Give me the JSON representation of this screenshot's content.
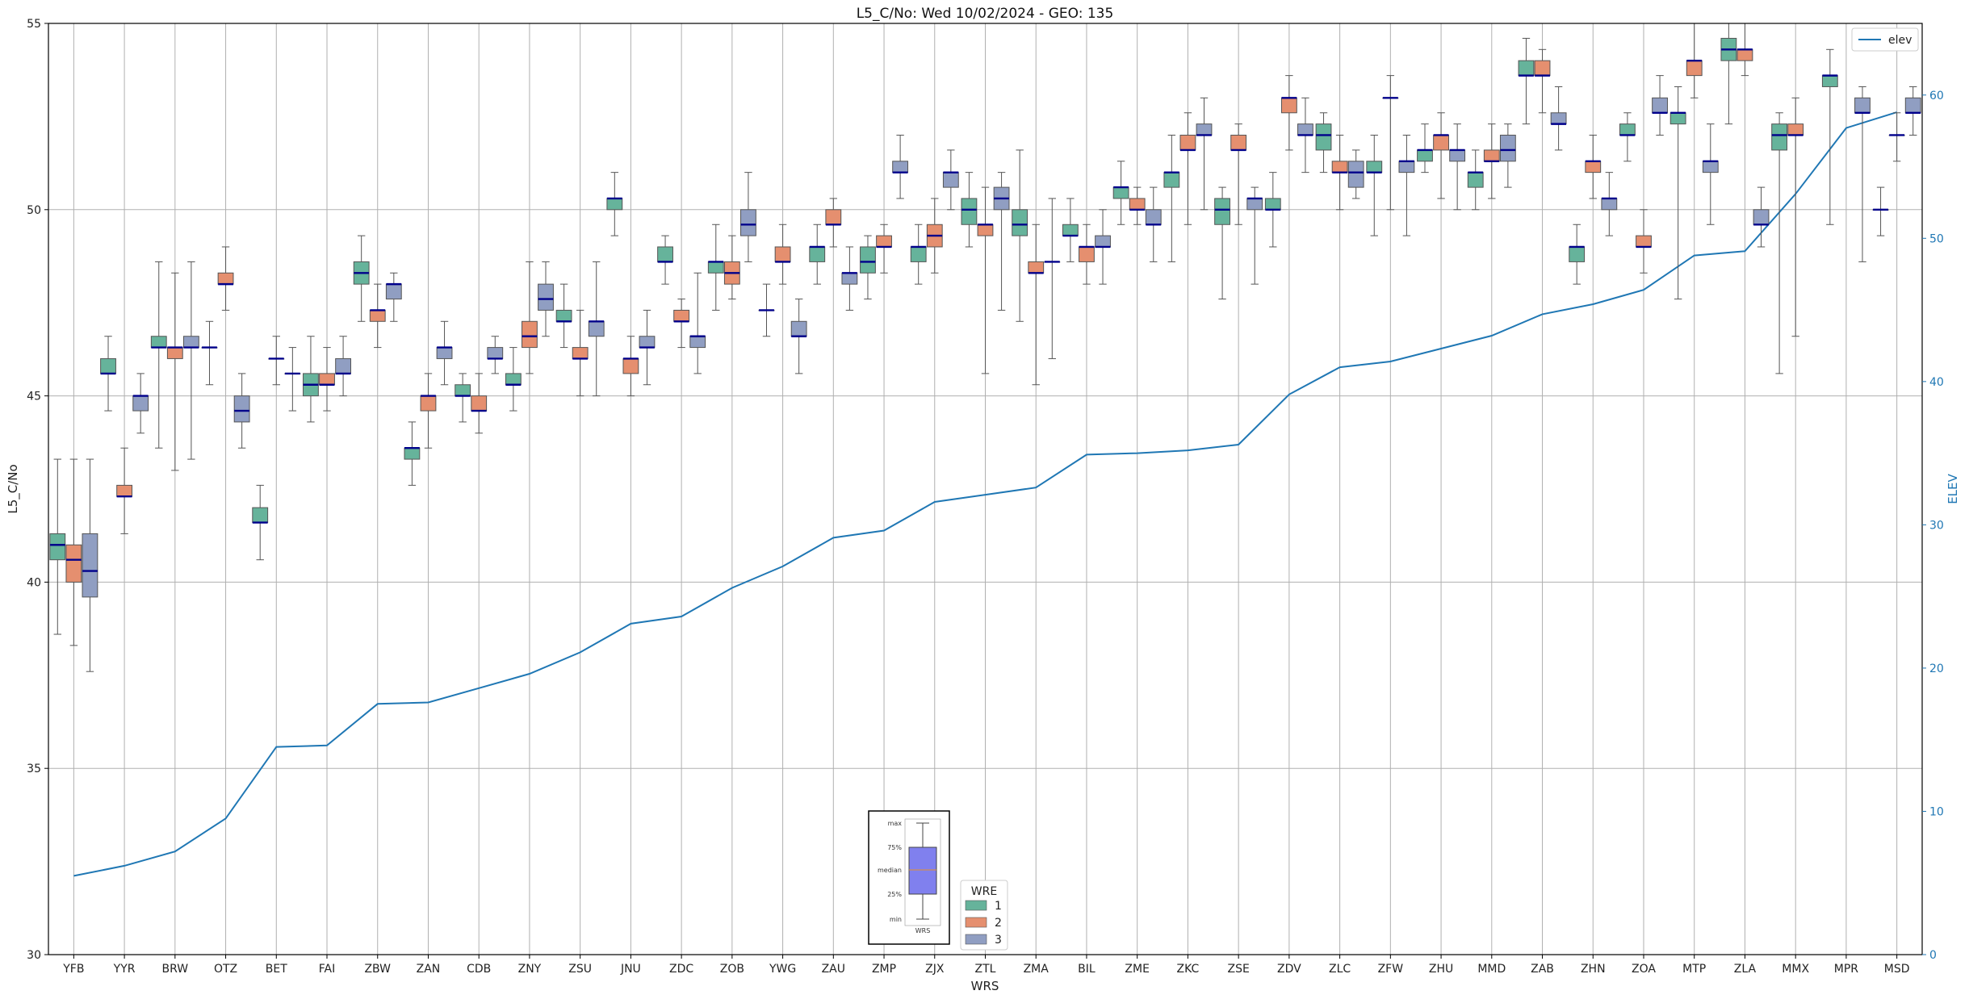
{
  "chart_data": {
    "type": "box",
    "title": "L5_C/No: Wed 10/02/2024 - GEO: 135",
    "xlabel": "WRS",
    "ylabel": "L5_C/No",
    "y2label": "ELEV",
    "ylim": [
      30,
      55
    ],
    "y2lim": [
      0,
      65
    ],
    "yticks": [
      30,
      35,
      40,
      45,
      50,
      55
    ],
    "y2ticks": [
      0,
      10,
      20,
      30,
      40,
      50,
      60
    ],
    "grid": true,
    "categories": [
      "YFB",
      "YYR",
      "BRW",
      "OTZ",
      "BET",
      "FAI",
      "ZBW",
      "ZAN",
      "CDB",
      "ZNY",
      "ZSU",
      "JNU",
      "ZDC",
      "ZOB",
      "YWG",
      "ZAU",
      "ZMP",
      "ZJX",
      "ZTL",
      "ZMA",
      "BIL",
      "ZME",
      "ZKC",
      "ZSE",
      "ZDV",
      "ZLC",
      "ZFW",
      "ZHU",
      "MMD",
      "ZAB",
      "ZHN",
      "ZOA",
      "MTP",
      "ZLA",
      "MMX",
      "MPR",
      "MSD"
    ],
    "hue_legend": {
      "title": "WRE",
      "entries": [
        "1",
        "2",
        "3"
      ]
    },
    "hue_colors": {
      "1": "#66b39b",
      "2": "#e58f6f",
      "3": "#909ec2"
    },
    "median_color": "#00008b",
    "elev_color": "#1f77b4",
    "elev_legend": "elev",
    "elev": [
      5.5,
      6.2,
      7.2,
      9.5,
      14.5,
      14.6,
      17.5,
      17.6,
      18.6,
      19.6,
      21.1,
      23.1,
      23.6,
      25.6,
      27.1,
      29.1,
      29.6,
      31.6,
      32.1,
      32.6,
      34.9,
      35.0,
      35.2,
      35.6,
      39.1,
      41.0,
      41.4,
      42.3,
      43.2,
      44.7,
      45.4,
      46.4,
      48.8,
      49.1,
      53.1,
      57.7,
      58.8
    ],
    "boxes": [
      {
        "wrs": "YFB",
        "wre": "1",
        "min": 38.6,
        "q1": 40.6,
        "median": 41.0,
        "q3": 41.3,
        "max": 43.3
      },
      {
        "wrs": "YFB",
        "wre": "2",
        "min": 38.3,
        "q1": 40.0,
        "median": 40.6,
        "q3": 41.0,
        "max": 43.3
      },
      {
        "wrs": "YFB",
        "wre": "3",
        "min": 37.6,
        "q1": 39.6,
        "median": 40.3,
        "q3": 41.3,
        "max": 43.3
      },
      {
        "wrs": "YYR",
        "wre": "1",
        "min": 44.6,
        "q1": 45.6,
        "median": 45.6,
        "q3": 46.0,
        "max": 46.6
      },
      {
        "wrs": "YYR",
        "wre": "2",
        "min": 41.3,
        "q1": 42.3,
        "median": 42.3,
        "q3": 42.6,
        "max": 43.6
      },
      {
        "wrs": "YYR",
        "wre": "3",
        "min": 44.0,
        "q1": 44.6,
        "median": 45.0,
        "q3": 45.0,
        "max": 45.6
      },
      {
        "wrs": "BRW",
        "wre": "1",
        "min": 43.6,
        "q1": 46.3,
        "median": 46.3,
        "q3": 46.6,
        "max": 48.6
      },
      {
        "wrs": "BRW",
        "wre": "2",
        "min": 43.0,
        "q1": 46.0,
        "median": 46.3,
        "q3": 46.3,
        "max": 48.3
      },
      {
        "wrs": "BRW",
        "wre": "3",
        "min": 43.3,
        "q1": 46.3,
        "median": 46.3,
        "q3": 46.6,
        "max": 48.6
      },
      {
        "wrs": "OTZ",
        "wre": "1",
        "min": 45.3,
        "q1": 46.3,
        "median": 46.3,
        "q3": 46.3,
        "max": 47.0
      },
      {
        "wrs": "OTZ",
        "wre": "2",
        "min": 47.3,
        "q1": 48.0,
        "median": 48.0,
        "q3": 48.3,
        "max": 49.0
      },
      {
        "wrs": "OTZ",
        "wre": "3",
        "min": 43.6,
        "q1": 44.3,
        "median": 44.6,
        "q3": 45.0,
        "max": 45.6
      },
      {
        "wrs": "BET",
        "wre": "1",
        "min": 40.6,
        "q1": 41.6,
        "median": 41.6,
        "q3": 42.0,
        "max": 42.6
      },
      {
        "wrs": "BET",
        "wre": "2",
        "min": 45.3,
        "q1": 46.0,
        "median": 46.0,
        "q3": 46.0,
        "max": 46.6
      },
      {
        "wrs": "BET",
        "wre": "3",
        "min": 44.6,
        "q1": 45.6,
        "median": 45.6,
        "q3": 45.6,
        "max": 46.3
      },
      {
        "wrs": "FAI",
        "wre": "1",
        "min": 44.3,
        "q1": 45.0,
        "median": 45.3,
        "q3": 45.6,
        "max": 46.6
      },
      {
        "wrs": "FAI",
        "wre": "2",
        "min": 44.6,
        "q1": 45.3,
        "median": 45.3,
        "q3": 45.6,
        "max": 46.3
      },
      {
        "wrs": "FAI",
        "wre": "3",
        "min": 45.0,
        "q1": 45.6,
        "median": 45.6,
        "q3": 46.0,
        "max": 46.6
      },
      {
        "wrs": "ZBW",
        "wre": "1",
        "min": 47.0,
        "q1": 48.0,
        "median": 48.3,
        "q3": 48.6,
        "max": 49.3
      },
      {
        "wrs": "ZBW",
        "wre": "2",
        "min": 46.3,
        "q1": 47.0,
        "median": 47.3,
        "q3": 47.3,
        "max": 48.0
      },
      {
        "wrs": "ZBW",
        "wre": "3",
        "min": 47.0,
        "q1": 47.6,
        "median": 48.0,
        "q3": 48.0,
        "max": 48.3
      },
      {
        "wrs": "ZAN",
        "wre": "1",
        "min": 42.6,
        "q1": 43.3,
        "median": 43.6,
        "q3": 43.6,
        "max": 44.3
      },
      {
        "wrs": "ZAN",
        "wre": "2",
        "min": 43.6,
        "q1": 44.6,
        "median": 45.0,
        "q3": 45.0,
        "max": 45.6
      },
      {
        "wrs": "ZAN",
        "wre": "3",
        "min": 45.3,
        "q1": 46.0,
        "median": 46.3,
        "q3": 46.3,
        "max": 47.0
      },
      {
        "wrs": "CDB",
        "wre": "1",
        "min": 44.3,
        "q1": 45.0,
        "median": 45.0,
        "q3": 45.3,
        "max": 45.6
      },
      {
        "wrs": "CDB",
        "wre": "2",
        "min": 44.0,
        "q1": 44.6,
        "median": 44.6,
        "q3": 45.0,
        "max": 45.6
      },
      {
        "wrs": "CDB",
        "wre": "3",
        "min": 45.6,
        "q1": 46.0,
        "median": 46.0,
        "q3": 46.3,
        "max": 46.6
      },
      {
        "wrs": "ZNY",
        "wre": "1",
        "min": 44.6,
        "q1": 45.3,
        "median": 45.3,
        "q3": 45.6,
        "max": 46.3
      },
      {
        "wrs": "ZNY",
        "wre": "2",
        "min": 45.6,
        "q1": 46.3,
        "median": 46.6,
        "q3": 47.0,
        "max": 48.6
      },
      {
        "wrs": "ZNY",
        "wre": "3",
        "min": 46.6,
        "q1": 47.3,
        "median": 47.6,
        "q3": 48.0,
        "max": 48.6
      },
      {
        "wrs": "ZSU",
        "wre": "1",
        "min": 46.3,
        "q1": 47.0,
        "median": 47.0,
        "q3": 47.3,
        "max": 48.0
      },
      {
        "wrs": "ZSU",
        "wre": "2",
        "min": 45.0,
        "q1": 46.0,
        "median": 46.0,
        "q3": 46.3,
        "max": 47.3
      },
      {
        "wrs": "ZSU",
        "wre": "3",
        "min": 45.0,
        "q1": 46.6,
        "median": 47.0,
        "q3": 47.0,
        "max": 48.6
      },
      {
        "wrs": "JNU",
        "wre": "1",
        "min": 49.3,
        "q1": 50.0,
        "median": 50.3,
        "q3": 50.3,
        "max": 51.0
      },
      {
        "wrs": "JNU",
        "wre": "2",
        "min": 45.0,
        "q1": 45.6,
        "median": 46.0,
        "q3": 46.0,
        "max": 46.6
      },
      {
        "wrs": "JNU",
        "wre": "3",
        "min": 45.3,
        "q1": 46.3,
        "median": 46.3,
        "q3": 46.6,
        "max": 47.3
      },
      {
        "wrs": "ZDC",
        "wre": "1",
        "min": 48.0,
        "q1": 48.6,
        "median": 48.6,
        "q3": 49.0,
        "max": 49.3
      },
      {
        "wrs": "ZDC",
        "wre": "2",
        "min": 46.3,
        "q1": 47.0,
        "median": 47.0,
        "q3": 47.3,
        "max": 47.6
      },
      {
        "wrs": "ZDC",
        "wre": "3",
        "min": 45.6,
        "q1": 46.3,
        "median": 46.6,
        "q3": 46.6,
        "max": 48.3
      },
      {
        "wrs": "ZOB",
        "wre": "1",
        "min": 47.3,
        "q1": 48.3,
        "median": 48.6,
        "q3": 48.6,
        "max": 49.6
      },
      {
        "wrs": "ZOB",
        "wre": "2",
        "min": 47.6,
        "q1": 48.0,
        "median": 48.3,
        "q3": 48.6,
        "max": 49.3
      },
      {
        "wrs": "ZOB",
        "wre": "3",
        "min": 48.6,
        "q1": 49.3,
        "median": 49.6,
        "q3": 50.0,
        "max": 51.0
      },
      {
        "wrs": "YWG",
        "wre": "1",
        "min": 46.6,
        "q1": 47.3,
        "median": 47.3,
        "q3": 47.3,
        "max": 48.0
      },
      {
        "wrs": "YWG",
        "wre": "2",
        "min": 48.0,
        "q1": 48.6,
        "median": 48.6,
        "q3": 49.0,
        "max": 49.6
      },
      {
        "wrs": "YWG",
        "wre": "3",
        "min": 45.6,
        "q1": 46.6,
        "median": 46.6,
        "q3": 47.0,
        "max": 47.6
      },
      {
        "wrs": "ZAU",
        "wre": "1",
        "min": 48.0,
        "q1": 48.6,
        "median": 49.0,
        "q3": 49.0,
        "max": 49.6
      },
      {
        "wrs": "ZAU",
        "wre": "2",
        "min": 49.0,
        "q1": 49.6,
        "median": 49.6,
        "q3": 50.0,
        "max": 50.3
      },
      {
        "wrs": "ZAU",
        "wre": "3",
        "min": 47.3,
        "q1": 48.0,
        "median": 48.3,
        "q3": 48.3,
        "max": 49.0
      },
      {
        "wrs": "ZMP",
        "wre": "1",
        "min": 47.6,
        "q1": 48.3,
        "median": 48.6,
        "q3": 49.0,
        "max": 49.3
      },
      {
        "wrs": "ZMP",
        "wre": "2",
        "min": 48.3,
        "q1": 49.0,
        "median": 49.0,
        "q3": 49.3,
        "max": 49.6
      },
      {
        "wrs": "ZMP",
        "wre": "3",
        "min": 50.3,
        "q1": 51.0,
        "median": 51.0,
        "q3": 51.3,
        "max": 52.0
      },
      {
        "wrs": "ZJX",
        "wre": "1",
        "min": 48.0,
        "q1": 48.6,
        "median": 49.0,
        "q3": 49.0,
        "max": 49.6
      },
      {
        "wrs": "ZJX",
        "wre": "2",
        "min": 48.3,
        "q1": 49.0,
        "median": 49.3,
        "q3": 49.6,
        "max": 50.3
      },
      {
        "wrs": "ZJX",
        "wre": "3",
        "min": 50.0,
        "q1": 50.6,
        "median": 51.0,
        "q3": 51.0,
        "max": 51.6
      },
      {
        "wrs": "ZTL",
        "wre": "1",
        "min": 49.0,
        "q1": 49.6,
        "median": 50.0,
        "q3": 50.3,
        "max": 51.0
      },
      {
        "wrs": "ZTL",
        "wre": "2",
        "min": 45.6,
        "q1": 49.3,
        "median": 49.6,
        "q3": 49.6,
        "max": 50.6
      },
      {
        "wrs": "ZTL",
        "wre": "3",
        "min": 47.3,
        "q1": 50.0,
        "median": 50.3,
        "q3": 50.6,
        "max": 51.0
      },
      {
        "wrs": "ZMA",
        "wre": "1",
        "min": 47.0,
        "q1": 49.3,
        "median": 49.6,
        "q3": 50.0,
        "max": 51.6
      },
      {
        "wrs": "ZMA",
        "wre": "2",
        "min": 45.3,
        "q1": 48.3,
        "median": 48.3,
        "q3": 48.6,
        "max": 49.6
      },
      {
        "wrs": "ZMA",
        "wre": "3",
        "min": 46.0,
        "q1": 48.6,
        "median": 48.6,
        "q3": 48.6,
        "max": 50.3
      },
      {
        "wrs": "BIL",
        "wre": "1",
        "min": 48.6,
        "q1": 49.3,
        "median": 49.3,
        "q3": 49.6,
        "max": 50.3
      },
      {
        "wrs": "BIL",
        "wre": "2",
        "min": 48.0,
        "q1": 48.6,
        "median": 49.0,
        "q3": 49.0,
        "max": 49.6
      },
      {
        "wrs": "BIL",
        "wre": "3",
        "min": 48.0,
        "q1": 49.0,
        "median": 49.0,
        "q3": 49.3,
        "max": 50.0
      },
      {
        "wrs": "ZME",
        "wre": "1",
        "min": 49.6,
        "q1": 50.3,
        "median": 50.6,
        "q3": 50.6,
        "max": 51.3
      },
      {
        "wrs": "ZME",
        "wre": "2",
        "min": 49.6,
        "q1": 50.0,
        "median": 50.0,
        "q3": 50.3,
        "max": 50.6
      },
      {
        "wrs": "ZME",
        "wre": "3",
        "min": 48.6,
        "q1": 49.6,
        "median": 49.6,
        "q3": 50.0,
        "max": 50.6
      },
      {
        "wrs": "ZKC",
        "wre": "1",
        "min": 48.6,
        "q1": 50.6,
        "median": 51.0,
        "q3": 51.0,
        "max": 52.0
      },
      {
        "wrs": "ZKC",
        "wre": "2",
        "min": 49.6,
        "q1": 51.6,
        "median": 51.6,
        "q3": 52.0,
        "max": 52.6
      },
      {
        "wrs": "ZKC",
        "wre": "3",
        "min": 50.0,
        "q1": 52.0,
        "median": 52.0,
        "q3": 52.3,
        "max": 53.0
      },
      {
        "wrs": "ZSE",
        "wre": "1",
        "min": 47.6,
        "q1": 49.6,
        "median": 50.0,
        "q3": 50.3,
        "max": 50.6
      },
      {
        "wrs": "ZSE",
        "wre": "2",
        "min": 49.6,
        "q1": 51.6,
        "median": 51.6,
        "q3": 52.0,
        "max": 52.3
      },
      {
        "wrs": "ZSE",
        "wre": "3",
        "min": 48.0,
        "q1": 50.0,
        "median": 50.3,
        "q3": 50.3,
        "max": 50.6
      },
      {
        "wrs": "ZDV",
        "wre": "1",
        "min": 49.0,
        "q1": 50.0,
        "median": 50.0,
        "q3": 50.3,
        "max": 51.0
      },
      {
        "wrs": "ZDV",
        "wre": "2",
        "min": 51.6,
        "q1": 52.6,
        "median": 53.0,
        "q3": 53.0,
        "max": 53.6
      },
      {
        "wrs": "ZDV",
        "wre": "3",
        "min": 51.0,
        "q1": 52.0,
        "median": 52.0,
        "q3": 52.3,
        "max": 53.0
      },
      {
        "wrs": "ZLC",
        "wre": "1",
        "min": 51.0,
        "q1": 51.6,
        "median": 52.0,
        "q3": 52.3,
        "max": 52.6
      },
      {
        "wrs": "ZLC",
        "wre": "2",
        "min": 50.0,
        "q1": 51.0,
        "median": 51.0,
        "q3": 51.3,
        "max": 52.0
      },
      {
        "wrs": "ZLC",
        "wre": "3",
        "min": 50.3,
        "q1": 50.6,
        "median": 51.0,
        "q3": 51.3,
        "max": 51.6
      },
      {
        "wrs": "ZFW",
        "wre": "1",
        "min": 49.3,
        "q1": 51.0,
        "median": 51.0,
        "q3": 51.3,
        "max": 52.0
      },
      {
        "wrs": "ZFW",
        "wre": "2",
        "min": 50.0,
        "q1": 53.0,
        "median": 53.0,
        "q3": 53.0,
        "max": 53.6
      },
      {
        "wrs": "ZFW",
        "wre": "3",
        "min": 49.3,
        "q1": 51.0,
        "median": 51.3,
        "q3": 51.3,
        "max": 52.0
      },
      {
        "wrs": "ZHU",
        "wre": "1",
        "min": 51.0,
        "q1": 51.3,
        "median": 51.6,
        "q3": 51.6,
        "max": 52.3
      },
      {
        "wrs": "ZHU",
        "wre": "2",
        "min": 50.3,
        "q1": 51.6,
        "median": 52.0,
        "q3": 52.0,
        "max": 52.6
      },
      {
        "wrs": "ZHU",
        "wre": "3",
        "min": 50.0,
        "q1": 51.3,
        "median": 51.6,
        "q3": 51.6,
        "max": 52.3
      },
      {
        "wrs": "MMD",
        "wre": "1",
        "min": 50.0,
        "q1": 50.6,
        "median": 51.0,
        "q3": 51.0,
        "max": 51.6
      },
      {
        "wrs": "MMD",
        "wre": "2",
        "min": 50.3,
        "q1": 51.3,
        "median": 51.3,
        "q3": 51.6,
        "max": 52.3
      },
      {
        "wrs": "MMD",
        "wre": "3",
        "min": 50.6,
        "q1": 51.3,
        "median": 51.6,
        "q3": 52.0,
        "max": 52.3
      },
      {
        "wrs": "ZAB",
        "wre": "1",
        "min": 52.3,
        "q1": 53.6,
        "median": 53.6,
        "q3": 54.0,
        "max": 54.6
      },
      {
        "wrs": "ZAB",
        "wre": "2",
        "min": 52.6,
        "q1": 53.6,
        "median": 53.6,
        "q3": 54.0,
        "max": 54.3
      },
      {
        "wrs": "ZAB",
        "wre": "3",
        "min": 51.6,
        "q1": 52.3,
        "median": 52.3,
        "q3": 52.6,
        "max": 53.3
      },
      {
        "wrs": "ZHN",
        "wre": "1",
        "min": 48.0,
        "q1": 48.6,
        "median": 49.0,
        "q3": 49.0,
        "max": 49.6
      },
      {
        "wrs": "ZHN",
        "wre": "2",
        "min": 50.3,
        "q1": 51.0,
        "median": 51.3,
        "q3": 51.3,
        "max": 52.0
      },
      {
        "wrs": "ZHN",
        "wre": "3",
        "min": 49.3,
        "q1": 50.0,
        "median": 50.3,
        "q3": 50.3,
        "max": 51.0
      },
      {
        "wrs": "ZOA",
        "wre": "1",
        "min": 51.3,
        "q1": 52.0,
        "median": 52.0,
        "q3": 52.3,
        "max": 52.6
      },
      {
        "wrs": "ZOA",
        "wre": "2",
        "min": 48.3,
        "q1": 49.0,
        "median": 49.0,
        "q3": 49.3,
        "max": 50.0
      },
      {
        "wrs": "ZOA",
        "wre": "3",
        "min": 52.0,
        "q1": 52.6,
        "median": 52.6,
        "q3": 53.0,
        "max": 53.6
      },
      {
        "wrs": "MTP",
        "wre": "1",
        "min": 47.6,
        "q1": 52.3,
        "median": 52.6,
        "q3": 52.6,
        "max": 53.3
      },
      {
        "wrs": "MTP",
        "wre": "2",
        "min": 53.0,
        "q1": 53.6,
        "median": 54.0,
        "q3": 54.0,
        "max": 55.0
      },
      {
        "wrs": "MTP",
        "wre": "3",
        "min": 49.6,
        "q1": 51.0,
        "median": 51.3,
        "q3": 51.3,
        "max": 52.3
      },
      {
        "wrs": "ZLA",
        "wre": "1",
        "min": 52.3,
        "q1": 54.0,
        "median": 54.3,
        "q3": 54.6,
        "max": 55.0
      },
      {
        "wrs": "ZLA",
        "wre": "2",
        "min": 53.6,
        "q1": 54.0,
        "median": 54.3,
        "q3": 54.3,
        "max": 55.0
      },
      {
        "wrs": "ZLA",
        "wre": "3",
        "min": 49.0,
        "q1": 49.6,
        "median": 49.6,
        "q3": 50.0,
        "max": 50.6
      },
      {
        "wrs": "MMX",
        "wre": "1",
        "min": 45.6,
        "q1": 51.6,
        "median": 52.0,
        "q3": 52.3,
        "max": 52.6
      },
      {
        "wrs": "MMX",
        "wre": "2",
        "min": 46.6,
        "q1": 52.0,
        "median": 52.0,
        "q3": 52.3,
        "max": 53.0
      },
      {
        "wrs": "MPR",
        "wre": "1",
        "min": 49.6,
        "q1": 53.3,
        "median": 53.6,
        "q3": 53.6,
        "max": 54.3
      },
      {
        "wrs": "MPR",
        "wre": "3",
        "min": 48.6,
        "q1": 52.6,
        "median": 52.6,
        "q3": 53.0,
        "max": 53.3
      },
      {
        "wrs": "MSD",
        "wre": "1",
        "min": 49.3,
        "q1": 50.0,
        "median": 50.0,
        "q3": 50.0,
        "max": 50.6
      },
      {
        "wrs": "MSD",
        "wre": "2",
        "min": 51.3,
        "q1": 52.0,
        "median": 52.0,
        "q3": 52.0,
        "max": 52.6
      },
      {
        "wrs": "MSD",
        "wre": "3",
        "min": 52.0,
        "q1": 52.6,
        "median": 52.6,
        "q3": 53.0,
        "max": 53.3
      }
    ]
  },
  "box_key": {
    "labels": [
      "max",
      "75%",
      "median",
      "25%",
      "min"
    ],
    "caption": "WRS"
  }
}
